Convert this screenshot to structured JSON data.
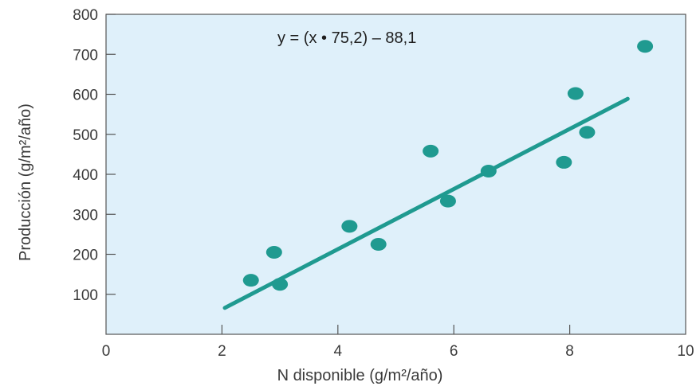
{
  "chart_data": {
    "type": "scatter",
    "xlabel": "N disponible (g/m²/año)",
    "ylabel": "Producción (g/m²/año)",
    "annotation": "y = (x • 75,2) – 88,1",
    "xlim": [
      0,
      10
    ],
    "ylim": [
      0,
      800
    ],
    "x_ticks": [
      "0",
      "2",
      "4",
      "6",
      "8",
      "10"
    ],
    "y_ticks": [
      "100",
      "200",
      "300",
      "400",
      "500",
      "600",
      "700",
      "800"
    ],
    "grid": false,
    "colors": {
      "plot_background": "#dff0fa",
      "points": "#1f9a90",
      "line": "#1f9a90"
    },
    "points": [
      {
        "x": 2.5,
        "y": 135
      },
      {
        "x": 2.9,
        "y": 205
      },
      {
        "x": 3.0,
        "y": 125
      },
      {
        "x": 4.2,
        "y": 270
      },
      {
        "x": 4.7,
        "y": 225
      },
      {
        "x": 5.6,
        "y": 458
      },
      {
        "x": 5.9,
        "y": 333
      },
      {
        "x": 6.6,
        "y": 408
      },
      {
        "x": 7.9,
        "y": 430
      },
      {
        "x": 8.1,
        "y": 602
      },
      {
        "x": 8.3,
        "y": 505
      },
      {
        "x": 9.3,
        "y": 720
      }
    ],
    "regression": {
      "slope": 75.2,
      "intercept": -88.1,
      "x_range": [
        2.05,
        9.0
      ]
    }
  }
}
